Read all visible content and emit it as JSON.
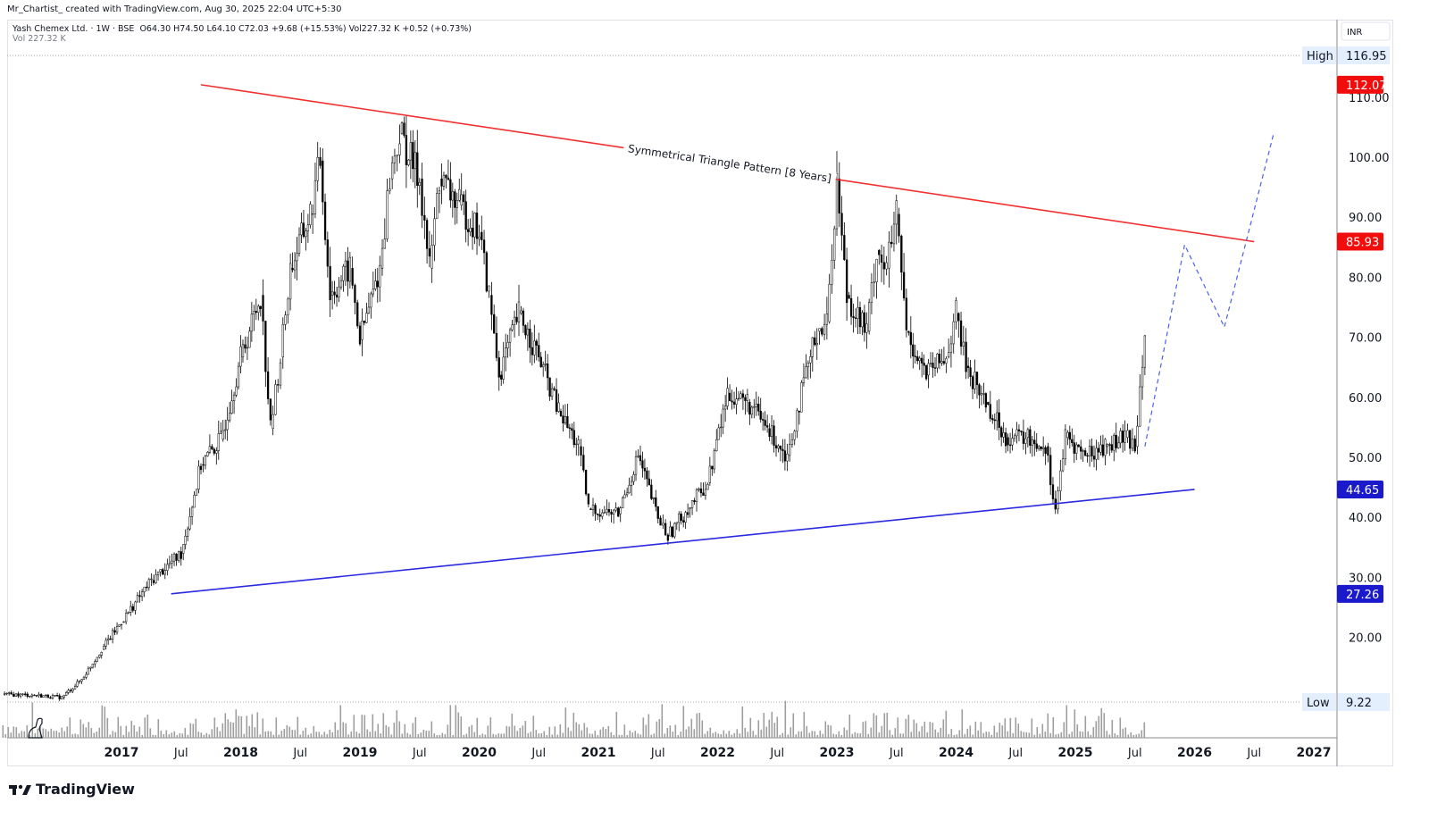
{
  "credit": "Mr_Chartist_ created with TradingView.com, Aug 30, 2025 22:04 UTC+5:30",
  "legend": {
    "symbol": "Yash Chemex Ltd. · 1W · BSE",
    "ohlc": "O64.30  H74.50  L64.10  C72.03  +9.68 (+15.53%)  Vol227.32 K  +0.52 (+0.73%)",
    "vol_label": "Vol",
    "vol_value": "227.32 K"
  },
  "currency": "INR",
  "footer_logo": "TradingView",
  "chart_data": {
    "type": "candlestick",
    "symbol": "Yash Chemex Ltd.",
    "interval": "1W",
    "exchange": "BSE",
    "ylim": [
      0,
      120
    ],
    "scale": "linear",
    "y_ticks": [
      "20.00",
      "30.00",
      "40.00",
      "50.00",
      "60.00",
      "70.00",
      "80.00",
      "90.00",
      "100.00",
      "110.00"
    ],
    "y_tick_values": [
      20,
      30,
      40,
      50,
      60,
      70,
      80,
      90,
      100,
      110
    ],
    "x_ticks": [
      {
        "label": "2017",
        "date": "2017-01"
      },
      {
        "label": "Jul",
        "date": "2017-07"
      },
      {
        "label": "2018",
        "date": "2018-01"
      },
      {
        "label": "Jul",
        "date": "2018-07"
      },
      {
        "label": "2019",
        "date": "2019-01"
      },
      {
        "label": "Jul",
        "date": "2019-07"
      },
      {
        "label": "2020",
        "date": "2020-01"
      },
      {
        "label": "Jul",
        "date": "2020-07"
      },
      {
        "label": "2021",
        "date": "2021-01"
      },
      {
        "label": "Jul",
        "date": "2021-07"
      },
      {
        "label": "2022",
        "date": "2022-01"
      },
      {
        "label": "Jul",
        "date": "2022-07"
      },
      {
        "label": "2023",
        "date": "2023-01"
      },
      {
        "label": "Jul",
        "date": "2023-07"
      },
      {
        "label": "2024",
        "date": "2024-01"
      },
      {
        "label": "Jul",
        "date": "2024-07"
      },
      {
        "label": "2025",
        "date": "2025-01"
      },
      {
        "label": "Jul",
        "date": "2025-07"
      },
      {
        "label": "2026",
        "date": "2026-01"
      },
      {
        "label": "Jul",
        "date": "2026-07"
      },
      {
        "label": "2027",
        "date": "2027-01"
      }
    ],
    "price_series_approx": [
      [
        "2016-01",
        10.5
      ],
      [
        "2016-04",
        10.4
      ],
      [
        "2016-07",
        10.0
      ],
      [
        "2016-09",
        13
      ],
      [
        "2016-11",
        18
      ],
      [
        "2017-01",
        22.6
      ],
      [
        "2017-04",
        29.5
      ],
      [
        "2017-07",
        34
      ],
      [
        "2017-09",
        48.8
      ],
      [
        "2017-11",
        53
      ],
      [
        "2018-01",
        66.7
      ],
      [
        "2018-03",
        77
      ],
      [
        "2018-04",
        54.8
      ],
      [
        "2018-05",
        66.7
      ],
      [
        "2018-06",
        81.5
      ],
      [
        "2018-08",
        90.5
      ],
      [
        "2018-09",
        99.4
      ],
      [
        "2018-10",
        77
      ],
      [
        "2018-12",
        81.5
      ],
      [
        "2019-01",
        69.6
      ],
      [
        "2019-03",
        81.5
      ],
      [
        "2019-04",
        96.4
      ],
      [
        "2019-05",
        103.9
      ],
      [
        "2019-07",
        96.4
      ],
      [
        "2019-08",
        81.5
      ],
      [
        "2019-09",
        96.4
      ],
      [
        "2019-11",
        92
      ],
      [
        "2020-01",
        87.5
      ],
      [
        "2020-02",
        77
      ],
      [
        "2020-03",
        63.7
      ],
      [
        "2020-05",
        74
      ],
      [
        "2020-07",
        66.7
      ],
      [
        "2020-09",
        57.7
      ],
      [
        "2020-11",
        51.8
      ],
      [
        "2020-12",
        41.4
      ],
      [
        "2021-03",
        40.6
      ],
      [
        "2021-05",
        50.3
      ],
      [
        "2021-07",
        39.9
      ],
      [
        "2021-08",
        36.9
      ],
      [
        "2021-10",
        41.4
      ],
      [
        "2021-12",
        45.8
      ],
      [
        "2022-02",
        60.7
      ],
      [
        "2022-04",
        59.2
      ],
      [
        "2022-06",
        54.8
      ],
      [
        "2022-08",
        50.3
      ],
      [
        "2022-09",
        57.7
      ],
      [
        "2022-11",
        71
      ],
      [
        "2022-12",
        72.6
      ],
      [
        "2023-01",
        96.4
      ],
      [
        "2023-02",
        77
      ],
      [
        "2023-04",
        71
      ],
      [
        "2023-05",
        84.5
      ],
      [
        "2023-06",
        81.5
      ],
      [
        "2023-07",
        90.5
      ],
      [
        "2023-08",
        71
      ],
      [
        "2023-10",
        63.7
      ],
      [
        "2023-12",
        66.7
      ],
      [
        "2024-01",
        74
      ],
      [
        "2024-02",
        65.2
      ],
      [
        "2024-04",
        59.2
      ],
      [
        "2024-06",
        53.3
      ],
      [
        "2024-08",
        53.3
      ],
      [
        "2024-10",
        51.8
      ],
      [
        "2024-11",
        41.4
      ],
      [
        "2024-12",
        53.3
      ],
      [
        "2025-02",
        50.3
      ],
      [
        "2025-04",
        51.8
      ],
      [
        "2025-06",
        53.3
      ],
      [
        "2025-07",
        51.8
      ],
      [
        "2025-08",
        72.03
      ]
    ],
    "high": {
      "label": "High",
      "value": "116.95"
    },
    "low": {
      "label": "Low",
      "value": "9.22"
    },
    "price_tags": [
      {
        "value": "112.07",
        "color": "#f20d0d"
      },
      {
        "value": "85.93",
        "color": "#f20d0d"
      },
      {
        "value": "44.65",
        "color": "#1a1acc"
      },
      {
        "value": "27.26",
        "color": "#1a1acc"
      }
    ],
    "trendlines": [
      {
        "name": "resistance",
        "color": "#f23030",
        "from": [
          "2017-09",
          112.07
        ],
        "to": [
          "2026-07",
          85.93
        ]
      },
      {
        "name": "support",
        "color": "#2a2ae0",
        "from": [
          "2017-06",
          27.26
        ],
        "to": [
          "2026-01",
          44.65
        ]
      }
    ],
    "projection": {
      "color": "#4d5ef0",
      "style": "dashed",
      "points": [
        [
          "2025-08",
          51.8
        ],
        [
          "2025-12",
          85.4
        ],
        [
          "2026-04",
          71.7
        ],
        [
          "2026-09",
          104.2
        ]
      ]
    },
    "annotation": "Symmetrical Triangle Pattern [8 Years]",
    "colors": {
      "candle": "#000000",
      "volume": "#9e9e9e"
    }
  }
}
